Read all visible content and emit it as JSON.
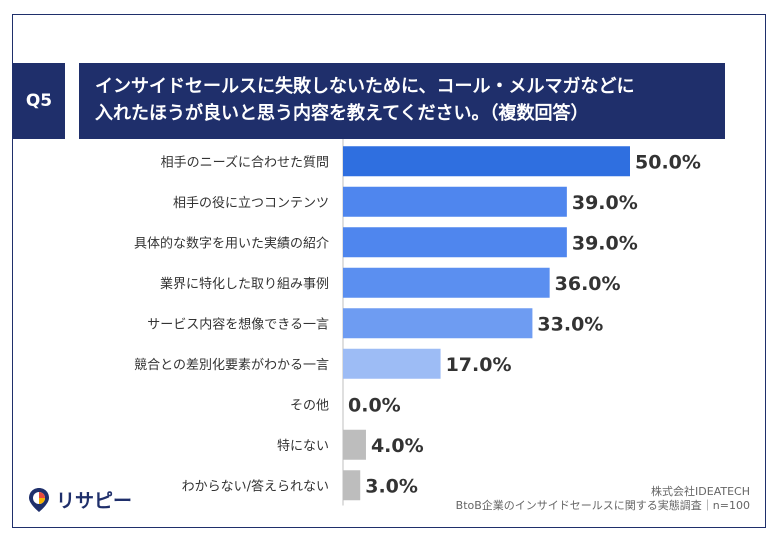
{
  "question": {
    "badge": "Q5",
    "title_line1": "インサイドセールスに失敗しないために、コール・メルマガなどに",
    "title_line2": "入れたほうが良いと思う内容を教えてください。（複数回答）"
  },
  "chart_data": {
    "type": "bar",
    "orientation": "horizontal",
    "categories": [
      "相手のニーズに合わせた質問",
      "相手の役に立つコンテンツ",
      "具体的な数字を用いた実績の紹介",
      "業界に特化した取り組み事例",
      "サービス内容を想像できる一言",
      "競合との差別化要素がわかる一言",
      "その他",
      "特にない",
      "わからない/答えられない"
    ],
    "values": [
      50.0,
      39.0,
      39.0,
      36.0,
      33.0,
      17.0,
      0.0,
      4.0,
      3.0
    ],
    "value_labels": [
      "50.0%",
      "39.0%",
      "39.0%",
      "36.0%",
      "33.0%",
      "17.0%",
      "0.0%",
      "4.0%",
      "3.0%"
    ],
    "bar_colors": [
      "#2f6fe0",
      "#4f86ee",
      "#4f86ee",
      "#5b8ff0",
      "#6e9cf2",
      "#9dbcf5",
      "#bdbdbd",
      "#bdbdbd",
      "#bdbdbd"
    ],
    "xlim": [
      0,
      50
    ],
    "grid": false
  },
  "logo": {
    "text": "リサピー",
    "icon": "pin-pie-icon"
  },
  "source": {
    "company": "株式会社IDEATECH",
    "survey": "BtoB企業のインサイドセールスに関する実態調査｜n=100"
  },
  "colors": {
    "navy": "#1f2f6b",
    "axis": "#bfbfbf"
  }
}
